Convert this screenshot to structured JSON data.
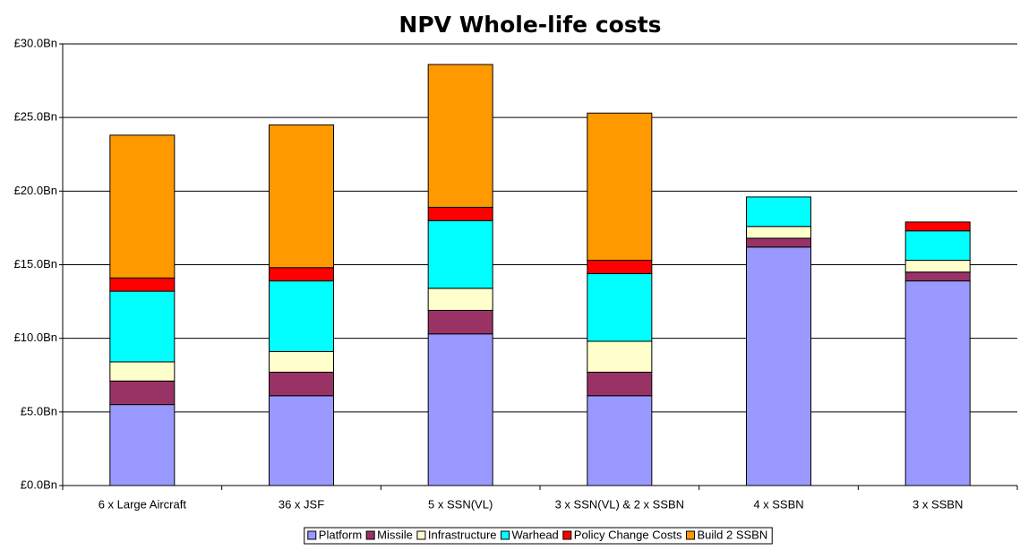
{
  "chart_data": {
    "type": "stacked_bar",
    "title": "NPV Whole-life costs",
    "categories": [
      "6 x Large Aircraft",
      "36 x JSF",
      "5 x SSN(VL)",
      "3 x SSN(VL) & 2 x SSBN",
      "4 x SSBN",
      "3 x SSBN"
    ],
    "series": [
      {
        "name": "Platform",
        "color": "#9999ff",
        "values": [
          5.5,
          6.1,
          10.3,
          6.1,
          16.2,
          13.9
        ]
      },
      {
        "name": "Missile",
        "color": "#993366",
        "values": [
          1.6,
          1.6,
          1.6,
          1.6,
          0.6,
          0.6
        ]
      },
      {
        "name": "Infrastructure",
        "color": "#ffffcc",
        "values": [
          1.3,
          1.4,
          1.5,
          2.1,
          0.8,
          0.8
        ]
      },
      {
        "name": "Warhead",
        "color": "#00ffff",
        "values": [
          4.8,
          4.8,
          4.6,
          4.6,
          2.0,
          2.0
        ]
      },
      {
        "name": "Policy Change Costs",
        "color": "#ff0000",
        "values": [
          0.9,
          0.9,
          0.9,
          0.9,
          0,
          0.6
        ]
      },
      {
        "name": "Build 2 SSBN",
        "color": "#ff9900",
        "values": [
          9.7,
          9.7,
          9.7,
          10.0,
          0,
          0
        ]
      }
    ],
    "ylim": [
      0,
      30
    ],
    "yticks": [
      {
        "value": 0,
        "label": "£0.0Bn"
      },
      {
        "value": 5,
        "label": "£5.0Bn"
      },
      {
        "value": 10,
        "label": "£10.0Bn"
      },
      {
        "value": 15,
        "label": "£15.0Bn"
      },
      {
        "value": 20,
        "label": "£20.0Bn"
      },
      {
        "value": 25,
        "label": "£25.0Bn"
      },
      {
        "value": 30,
        "label": "£30.0Bn"
      }
    ],
    "grid": true,
    "legend": "bottom"
  }
}
